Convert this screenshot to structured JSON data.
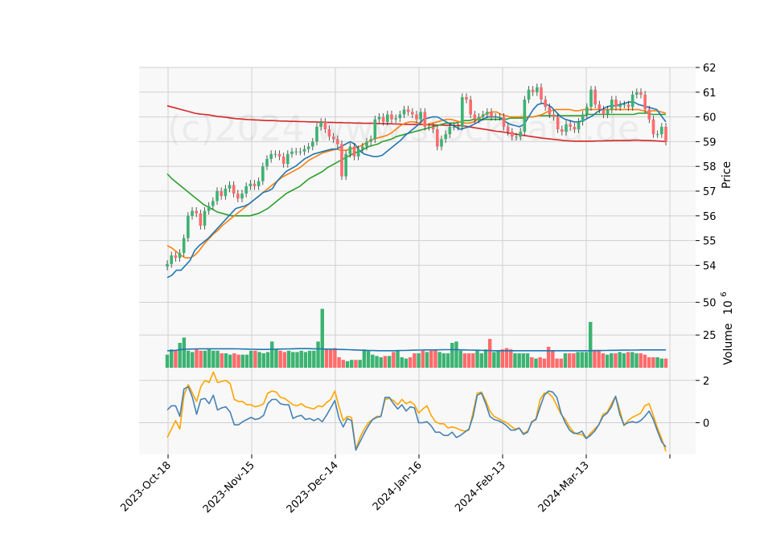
{
  "chart_data": {
    "type": "candlestick",
    "watermark": "(c)2024 www.stockdata.de",
    "x_tick_labels": [
      "2023-Oct-18",
      "2023-Nov-15",
      "2023-Dec-14",
      "2024-Jan-16",
      "2024-Feb-13",
      "2024-Mar-13"
    ],
    "price_panel": {
      "ylabel": "Price",
      "ylim": [
        53.3,
        62
      ],
      "yticks": [
        54,
        55,
        56,
        57,
        58,
        59,
        60,
        61,
        62
      ],
      "close": [
        54.05,
        54.4,
        54.3,
        54.5,
        55.1,
        56.0,
        56.2,
        56.1,
        55.6,
        56.2,
        56.4,
        56.6,
        57.0,
        56.8,
        57.1,
        57.25,
        56.9,
        56.7,
        56.9,
        57.2,
        57.3,
        57.2,
        57.4,
        58.0,
        58.3,
        58.5,
        58.5,
        58.4,
        58.1,
        58.5,
        58.6,
        58.6,
        58.6,
        58.7,
        58.8,
        59.0,
        59.6,
        59.8,
        59.5,
        59.2,
        59.1,
        58.9,
        57.6,
        58.5,
        58.8,
        58.4,
        58.7,
        58.8,
        59.0,
        59.1,
        59.9,
        60.0,
        59.8,
        60.1,
        59.9,
        59.95,
        60.1,
        60.3,
        60.2,
        60.1,
        59.9,
        60.2,
        59.6,
        59.6,
        59.5,
        58.8,
        59.1,
        59.3,
        59.6,
        59.6,
        59.6,
        60.8,
        60.7,
        60.1,
        59.9,
        60.0,
        60.1,
        60.2,
        60.0,
        60.0,
        60.0,
        59.6,
        59.4,
        59.2,
        59.2,
        59.4,
        60.7,
        61.1,
        61.0,
        61.2,
        60.7,
        60.4,
        60.1,
        60.0,
        59.5,
        59.4,
        59.7,
        59.6,
        59.5,
        59.8,
        60.1,
        60.4,
        61.1,
        60.5,
        60.3,
        60.1,
        60.3,
        60.7,
        60.4,
        60.5,
        60.5,
        60.4,
        60.9,
        61.0,
        60.9,
        60.3,
        59.9,
        59.3,
        59.3,
        59.6,
        59.0
      ],
      "ma_short": [
        53.5,
        53.6,
        53.8,
        53.8,
        54.0,
        54.2,
        54.6,
        54.8,
        54.95,
        55.1,
        55.3,
        55.5,
        55.7,
        55.9,
        56.1,
        56.3,
        56.35,
        56.4,
        56.5,
        56.65,
        56.8,
        56.95,
        57.0,
        57.1,
        57.4,
        57.6,
        57.8,
        57.9,
        58.0,
        58.15,
        58.3,
        58.4,
        58.5,
        58.55,
        58.6,
        58.65,
        58.7,
        58.7,
        58.8,
        58.9,
        59.0,
        58.9,
        58.65,
        58.5,
        58.45,
        58.4,
        58.4,
        58.45,
        58.6,
        58.75,
        58.9,
        59.05,
        59.25,
        59.4,
        59.55,
        59.7,
        59.9,
        59.95,
        60.0,
        60.0,
        59.9,
        59.8,
        59.7,
        59.6,
        59.5,
        59.55,
        59.6,
        59.7,
        59.8,
        59.9,
        60.0,
        60.0,
        60.0,
        59.95,
        59.8,
        59.7,
        59.65,
        59.6,
        59.7,
        60.0,
        60.3,
        60.5,
        60.55,
        60.5,
        60.4,
        60.2,
        60.0,
        59.9,
        59.85,
        59.8,
        59.8,
        59.85,
        59.95,
        60.05,
        60.2,
        60.3,
        60.4,
        60.45,
        60.45,
        60.5,
        60.55,
        60.6,
        60.6,
        60.5,
        60.45,
        60.4,
        60.35,
        60.3,
        60.05,
        59.8
      ],
      "ma_mid": [
        54.8,
        54.7,
        54.55,
        54.4,
        54.3,
        54.3,
        54.4,
        54.6,
        54.85,
        55.05,
        55.25,
        55.4,
        55.6,
        55.75,
        55.9,
        56.05,
        56.2,
        56.35,
        56.5,
        56.65,
        56.8,
        56.95,
        57.1,
        57.25,
        57.4,
        57.55,
        57.65,
        57.75,
        57.85,
        57.95,
        58.1,
        58.25,
        58.35,
        58.45,
        58.55,
        58.6,
        58.65,
        58.7,
        58.65,
        58.65,
        58.7,
        58.75,
        58.8,
        58.9,
        59.0,
        59.1,
        59.15,
        59.2,
        59.25,
        59.35,
        59.5,
        59.65,
        59.75,
        59.8,
        59.8,
        59.75,
        59.7,
        59.7,
        59.75,
        59.8,
        59.85,
        59.9,
        59.9,
        59.85,
        59.8,
        59.75,
        59.75,
        59.8,
        59.9,
        60.05,
        60.15,
        60.2,
        60.2,
        60.1,
        60.05,
        60.0,
        60.0,
        60.0,
        60.0,
        60.0,
        60.0,
        60.05,
        60.1,
        60.2,
        60.25,
        60.3,
        60.3,
        60.3,
        60.3,
        60.25,
        60.25,
        60.3,
        60.3,
        60.3,
        60.3,
        60.3,
        60.3,
        60.3,
        60.3,
        60.3,
        60.3,
        60.3,
        60.3,
        60.3,
        60.25,
        60.2,
        60.25,
        60.25,
        60.2,
        60.15
      ],
      "ma_long": [
        57.7,
        57.5,
        57.35,
        57.2,
        57.05,
        56.9,
        56.75,
        56.6,
        56.45,
        56.35,
        56.25,
        56.15,
        56.1,
        56.05,
        56.0,
        56.0,
        56.0,
        56.0,
        56.0,
        56.05,
        56.1,
        56.2,
        56.3,
        56.45,
        56.6,
        56.75,
        56.9,
        57.0,
        57.1,
        57.2,
        57.35,
        57.5,
        57.6,
        57.7,
        57.8,
        57.95,
        58.05,
        58.15,
        58.25,
        58.35,
        58.45,
        58.55,
        58.6,
        58.7,
        58.8,
        58.85,
        58.9,
        59.0,
        59.05,
        59.1,
        59.2,
        59.25,
        59.3,
        59.35,
        59.4,
        59.45,
        59.5,
        59.55,
        59.6,
        59.65,
        59.7,
        59.75,
        59.75,
        59.75,
        59.8,
        59.85,
        59.85,
        59.9,
        59.9,
        59.9,
        59.9,
        59.9,
        59.9,
        59.9,
        59.9,
        59.95,
        59.95,
        59.95,
        59.95,
        60.0,
        60.0,
        60.05,
        60.05,
        60.05,
        60.05,
        60.05,
        60.05,
        60.05,
        60.05,
        60.05,
        60.05,
        60.05,
        60.1,
        60.1,
        60.1,
        60.1,
        60.1,
        60.1,
        60.1,
        60.1,
        60.1,
        60.1,
        60.1,
        60.15,
        60.15,
        60.15,
        60.1,
        60.1,
        60.1,
        60.1
      ],
      "ma_200": [
        60.45,
        60.4,
        60.35,
        60.3,
        60.25,
        60.2,
        60.15,
        60.12,
        60.1,
        60.08,
        60.05,
        60.02,
        60.0,
        59.98,
        59.95,
        59.93,
        59.92,
        59.9,
        59.89,
        59.88,
        59.87,
        59.86,
        59.85,
        59.85,
        59.84,
        59.83,
        59.83,
        59.82,
        59.82,
        59.81,
        59.81,
        59.8,
        59.8,
        59.79,
        59.79,
        59.78,
        59.78,
        59.77,
        59.77,
        59.76,
        59.76,
        59.75,
        59.75,
        59.74,
        59.74,
        59.74,
        59.73,
        59.73,
        59.72,
        59.72,
        59.71,
        59.71,
        59.7,
        59.7,
        59.7,
        59.69,
        59.69,
        59.68,
        59.68,
        59.67,
        59.67,
        59.66,
        59.66,
        59.65,
        59.65,
        59.63,
        59.6,
        59.57,
        59.54,
        59.51,
        59.48,
        59.45,
        59.42,
        59.4,
        59.37,
        59.34,
        59.31,
        59.28,
        59.25,
        59.22,
        59.2,
        59.17,
        59.14,
        59.12,
        59.1,
        59.08,
        59.06,
        59.04,
        59.03,
        59.02,
        59.02,
        59.02,
        59.02,
        59.02,
        59.03,
        59.03,
        59.04,
        59.04,
        59.05,
        59.05,
        59.05,
        59.05,
        59.06,
        59.06,
        59.05,
        59.05,
        59.04,
        59.03,
        59.02,
        59.0
      ]
    },
    "volume_panel": {
      "ylabel": "Volume",
      "ylabel_exponent": "10",
      "ylabel_exponent_power": "6",
      "ylim": [
        0,
        65
      ],
      "yticks": [
        25,
        50
      ],
      "values": [
        10,
        14,
        13,
        19,
        23,
        13,
        12,
        14,
        13,
        13,
        14,
        13,
        13,
        11,
        11,
        10,
        11,
        10,
        10,
        10,
        13,
        13,
        12,
        11,
        12,
        20,
        14,
        13,
        12,
        13,
        12,
        12,
        13,
        12,
        13,
        13,
        20,
        45,
        14,
        14,
        15,
        8,
        6,
        5,
        6,
        6,
        6,
        14,
        13,
        10,
        9,
        8,
        9,
        9,
        12,
        13,
        8,
        7,
        8,
        11,
        11,
        13,
        12,
        13,
        14,
        12,
        11,
        11,
        19,
        20,
        13,
        11,
        11,
        11,
        13,
        11,
        14,
        22,
        12,
        13,
        14,
        15,
        14,
        11,
        11,
        11,
        11,
        8,
        7,
        8,
        7,
        16,
        13,
        7,
        7,
        11,
        11,
        11,
        12,
        12,
        12,
        35,
        13,
        13,
        11,
        10,
        11,
        11,
        12,
        11,
        12,
        12,
        11,
        11,
        10,
        8,
        8,
        8,
        7,
        7
      ],
      "ma": [
        13,
        13,
        13.5,
        14,
        14.2,
        14.3,
        14.4,
        14.5,
        14.5,
        14.5,
        14.5,
        14.5,
        14.5,
        14.5,
        14.4,
        14.3,
        14.2,
        14.1,
        14.0,
        14.0,
        14.0,
        14.1,
        14.2,
        14.3,
        14.4,
        14.5,
        14.6,
        14.6,
        14.6,
        14.5,
        14.4,
        14.3,
        14.2,
        14.1,
        14.0,
        13.9,
        13.8,
        13.6,
        13.4,
        13.3,
        13.2,
        13.1,
        13.0,
        13.0,
        13.0,
        13.0,
        13.1,
        13.2,
        13.3,
        13.4,
        13.5,
        13.6,
        13.6,
        13.6,
        13.7,
        13.8,
        13.8,
        13.8,
        13.7,
        13.6,
        13.5,
        13.4,
        13.3,
        13.2,
        13.1,
        13.0,
        13.0,
        13.0,
        13.0,
        13.0,
        13.0,
        13.0,
        13.0,
        13.0,
        13.0,
        13.0,
        13.0,
        13.0,
        13.0,
        13.0,
        13.0,
        13.0,
        13.0,
        13.0,
        13.0,
        13.1,
        13.1,
        13.2,
        13.3,
        13.3,
        13.4,
        13.4,
        13.5,
        13.5,
        13.6,
        13.6,
        13.6,
        13.6,
        13.6,
        13.6
      ]
    },
    "oscillator_panel": {
      "ylim": [
        -1.5,
        2.6
      ],
      "yticks": [
        0,
        2
      ],
      "line_a": [
        0.6,
        0.8,
        0.8,
        0.3,
        1.6,
        1.7,
        1.2,
        0.4,
        1.1,
        1.15,
        0.9,
        1.3,
        0.6,
        0.7,
        0.75,
        0.5,
        -0.1,
        -0.1,
        0.05,
        0.15,
        0.25,
        0.15,
        0.2,
        0.35,
        0.9,
        1.1,
        1.1,
        0.9,
        0.85,
        0.85,
        0.2,
        0.3,
        0.35,
        0.15,
        0.2,
        0.1,
        0.2,
        0.05,
        0.35,
        0.7,
        1.05,
        0.2,
        -0.2,
        0.2,
        0.1,
        -1.3,
        -0.9,
        -0.5,
        -0.15,
        0.15,
        0.25,
        0.3,
        1.2,
        1.2,
        0.9,
        0.65,
        0.85,
        0.55,
        0.75,
        0.7,
        0.0,
        0.0,
        0.05,
        -0.15,
        -0.45,
        -0.45,
        -0.6,
        -0.6,
        -0.45,
        -0.7,
        -0.6,
        -0.45,
        -0.3,
        0.3,
        1.3,
        1.4,
        0.9,
        0.3,
        0.15,
        0.1,
        0.0,
        -0.15,
        -0.35,
        -0.35,
        -0.25,
        -0.55,
        -0.45,
        0.05,
        0.15,
        0.75,
        1.3,
        1.5,
        1.45,
        1.2,
        0.45,
        0.0,
        -0.35,
        -0.5,
        -0.5,
        -0.4,
        -0.75,
        -0.6,
        -0.4,
        -0.1,
        0.3,
        0.45,
        0.75,
        1.25,
        0.4,
        -0.1,
        0.0,
        0.05,
        0.0,
        0.1,
        0.3,
        0.55,
        0.15,
        -0.4,
        -0.9,
        -1.15
      ],
      "line_b": [
        -0.7,
        -0.3,
        0.1,
        -0.3,
        1.3,
        1.8,
        1.4,
        1.0,
        1.7,
        2.0,
        1.9,
        2.4,
        1.9,
        1.95,
        2.0,
        1.85,
        1.1,
        1.0,
        1.0,
        0.85,
        0.85,
        0.75,
        0.8,
        0.9,
        1.4,
        1.5,
        1.45,
        1.2,
        1.15,
        1.0,
        0.85,
        0.8,
        0.9,
        0.75,
        0.7,
        0.65,
        0.8,
        0.75,
        0.95,
        1.1,
        1.5,
        0.75,
        0.1,
        0.3,
        0.25,
        -1.25,
        -0.7,
        -0.3,
        0.0,
        0.15,
        0.3,
        0.3,
        1.1,
        1.15,
        1.05,
        0.85,
        1.1,
        0.9,
        1.0,
        0.85,
        0.45,
        0.65,
        0.8,
        0.35,
        0.05,
        -0.05,
        -0.05,
        -0.25,
        -0.2,
        -0.25,
        -0.35,
        -0.4,
        -0.35,
        0.5,
        1.4,
        1.45,
        1.05,
        0.55,
        0.3,
        0.2,
        0.1,
        0.0,
        -0.15,
        -0.3,
        -0.25,
        -0.5,
        -0.4,
        0.0,
        0.2,
        1.1,
        1.4,
        1.4,
        1.2,
        0.8,
        0.4,
        0.15,
        -0.2,
        -0.45,
        -0.55,
        -0.55,
        -0.75,
        -0.5,
        -0.3,
        -0.1,
        0.4,
        0.5,
        0.9,
        1.25,
        0.6,
        -0.15,
        0.1,
        0.25,
        0.35,
        0.45,
        0.8,
        0.9,
        0.35,
        -0.25,
        -0.75,
        -1.35
      ]
    },
    "colors": {
      "up": "#26a69a",
      "up_fill": "#3cb371",
      "down": "#ef5350",
      "down_fill": "#ff6b6b",
      "ma_short": "#1f77b4",
      "ma_mid": "#ff7f0e",
      "ma_long": "#2ca02c",
      "ma_200": "#d62728",
      "vol_ma": "#1f77b4",
      "osc_a": "#4682b4",
      "osc_b": "#ffa500",
      "panel_bg": "#f8f8f8",
      "grid": "#d0d0d0"
    },
    "grid": true
  }
}
